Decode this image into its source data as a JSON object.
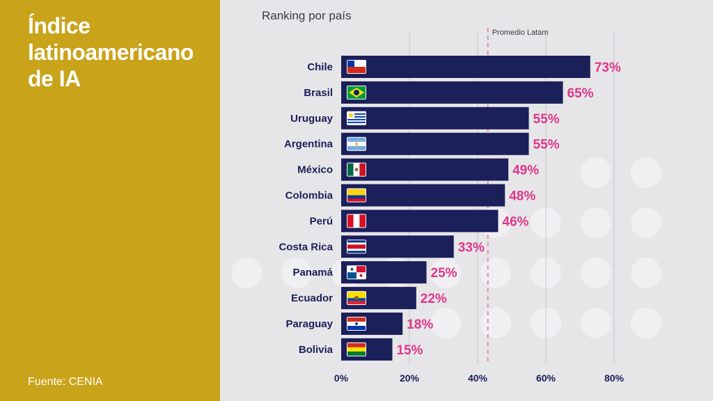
{
  "title": "Índice latinoamericano de IA",
  "source": "Fuente: CENIA",
  "colors": {
    "panel": "#c9a31a",
    "bar": "#1b1f5a",
    "label": "#e0358a",
    "background": "#e6e6e8"
  },
  "chart_data": {
    "type": "bar",
    "orientation": "horizontal",
    "subtitle": "Ranking por país",
    "categories": [
      "Chile",
      "Brasil",
      "Uruguay",
      "Argentina",
      "México",
      "Colombia",
      "Perú",
      "Costa Rica",
      "Panamá",
      "Ecuador",
      "Paraguay",
      "Bolivia"
    ],
    "values": [
      73,
      65,
      55,
      55,
      49,
      48,
      46,
      33,
      25,
      22,
      18,
      15
    ],
    "data_labels": [
      "73%",
      "65%",
      "55%",
      "55%",
      "49%",
      "48%",
      "46%",
      "33%",
      "25%",
      "22%",
      "18%",
      "15%"
    ],
    "flag_icons": [
      "chile-flag-icon",
      "brazil-flag-icon",
      "uruguay-flag-icon",
      "argentina-flag-icon",
      "mexico-flag-icon",
      "colombia-flag-icon",
      "peru-flag-icon",
      "costa-rica-flag-icon",
      "panama-flag-icon",
      "ecuador-flag-icon",
      "paraguay-flag-icon",
      "bolivia-flag-icon"
    ],
    "x_ticks": [
      0,
      20,
      40,
      60,
      80
    ],
    "x_tick_labels": [
      "0%",
      "20%",
      "40%",
      "60%",
      "80%"
    ],
    "xlim": [
      0,
      80
    ],
    "reference_line": {
      "label": "Promedio Latam",
      "value": 43
    },
    "grid": "vertical"
  }
}
